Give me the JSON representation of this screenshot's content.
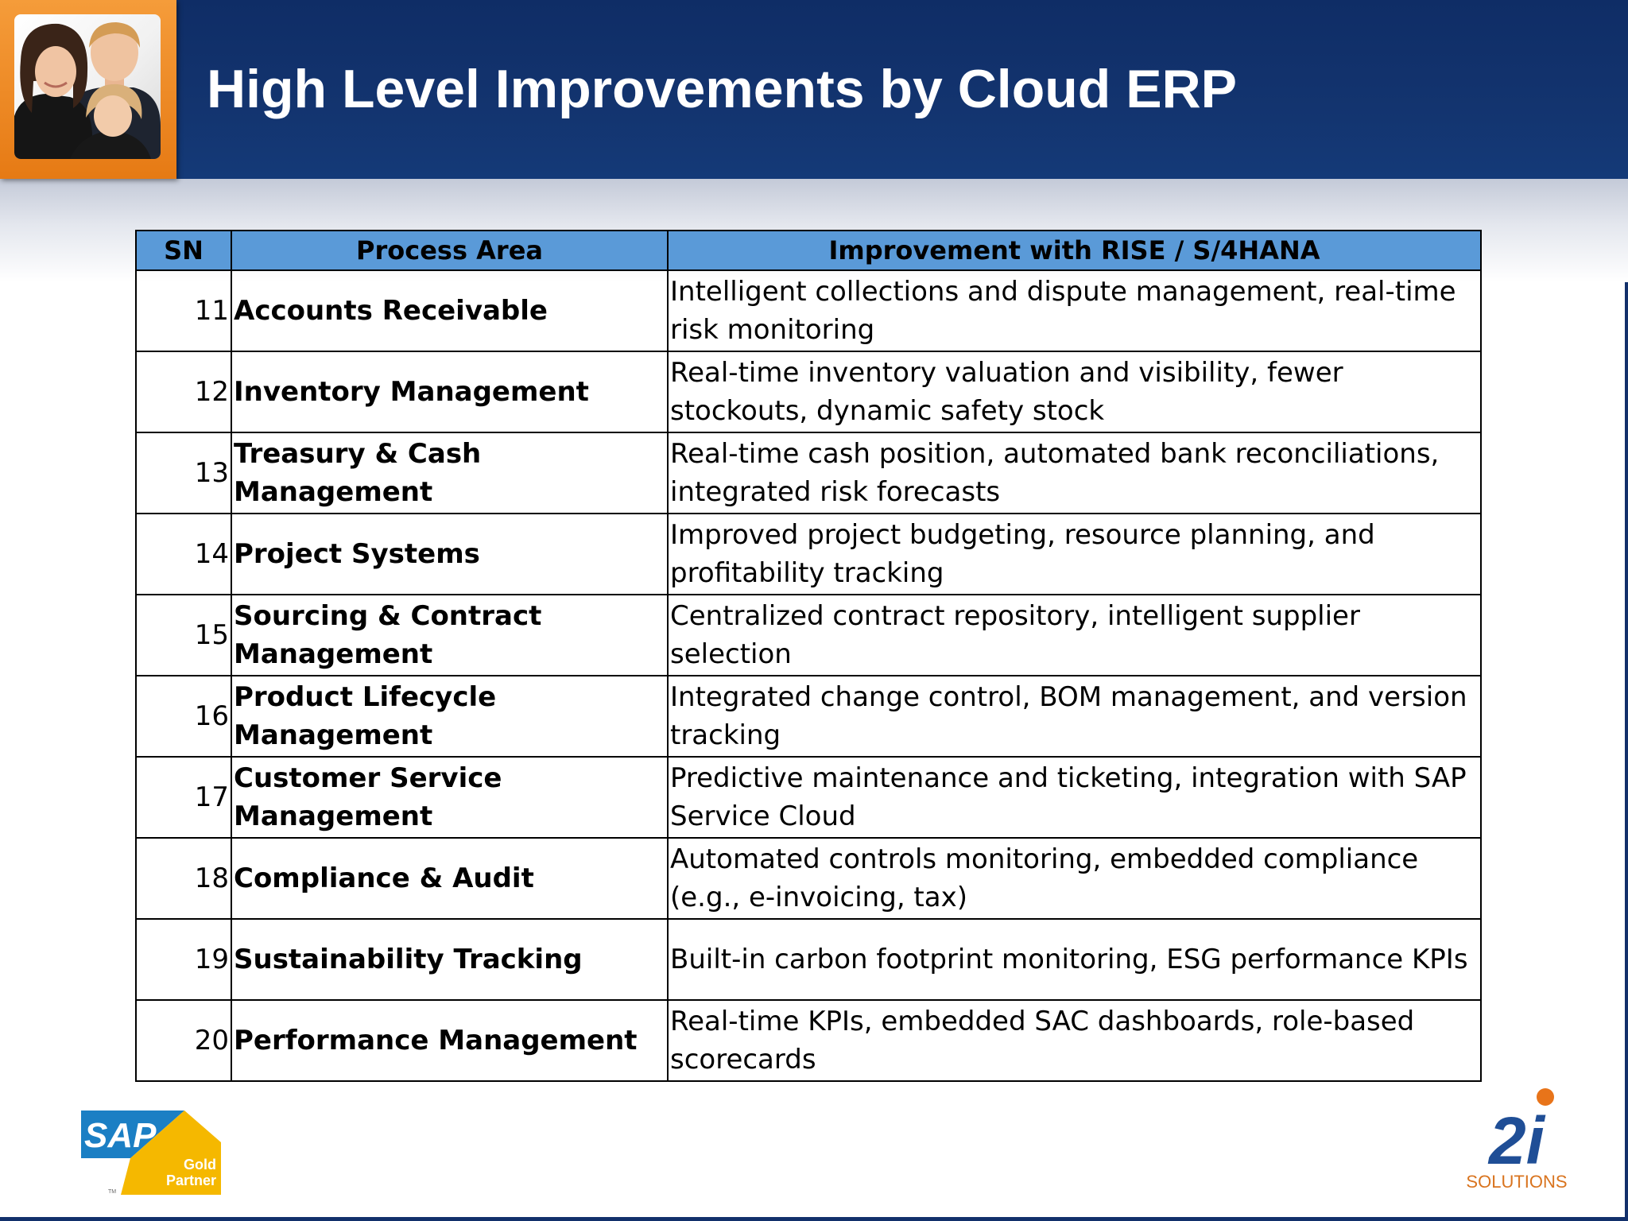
{
  "slide": {
    "title": "High Level Improvements by Cloud ERP"
  },
  "table": {
    "headers": [
      "SN",
      "Process Area",
      "Improvement with RISE / S/4HANA"
    ],
    "rows": [
      {
        "sn": "11",
        "area": "Accounts Receivable",
        "improvement": "Intelligent collections and dispute management, real-time risk monitoring"
      },
      {
        "sn": "12",
        "area": "Inventory Management",
        "improvement": "Real-time inventory valuation and visibility, fewer stockouts, dynamic safety stock"
      },
      {
        "sn": "13",
        "area": "Treasury & Cash Management",
        "improvement": "Real-time cash position, automated bank reconciliations, integrated risk forecasts"
      },
      {
        "sn": "14",
        "area": "Project Systems",
        "improvement": "Improved project budgeting, resource planning, and profitability tracking"
      },
      {
        "sn": "15",
        "area": "Sourcing & Contract Management",
        "improvement": "Centralized contract repository, intelligent supplier selection"
      },
      {
        "sn": "16",
        "area": "Product Lifecycle Management",
        "improvement": "Integrated change control, BOM management, and version tracking"
      },
      {
        "sn": "17",
        "area": "Customer Service Management",
        "improvement": "Predictive maintenance and ticketing, integration with SAP Service Cloud"
      },
      {
        "sn": "18",
        "area": "Compliance & Audit",
        "improvement": "Automated controls monitoring, embedded compliance (e.g., e-invoicing, tax)"
      },
      {
        "sn": "19",
        "area": "Sustainability Tracking",
        "improvement": "Built-in carbon footprint monitoring, ESG performance KPIs"
      },
      {
        "sn": "20",
        "area": "Performance Management",
        "improvement": "Real-time KPIs, embedded SAC dashboards, role-based scorecards"
      }
    ]
  },
  "logos": {
    "sap": {
      "word": "SAP",
      "line1": "Gold",
      "line2": "Partner",
      "tm": "TM"
    },
    "twoi": {
      "mark": "2i",
      "word": "SOLUTIONS"
    }
  },
  "colors": {
    "header_bg": "#13346f",
    "table_header_bg": "#5a9ad8",
    "photo_frame": "#f08a25",
    "sap_blue": "#1b7fc4",
    "sap_gold": "#f5b800",
    "twoi_blue": "#1f4e96",
    "twoi_orange": "#e8741a"
  }
}
